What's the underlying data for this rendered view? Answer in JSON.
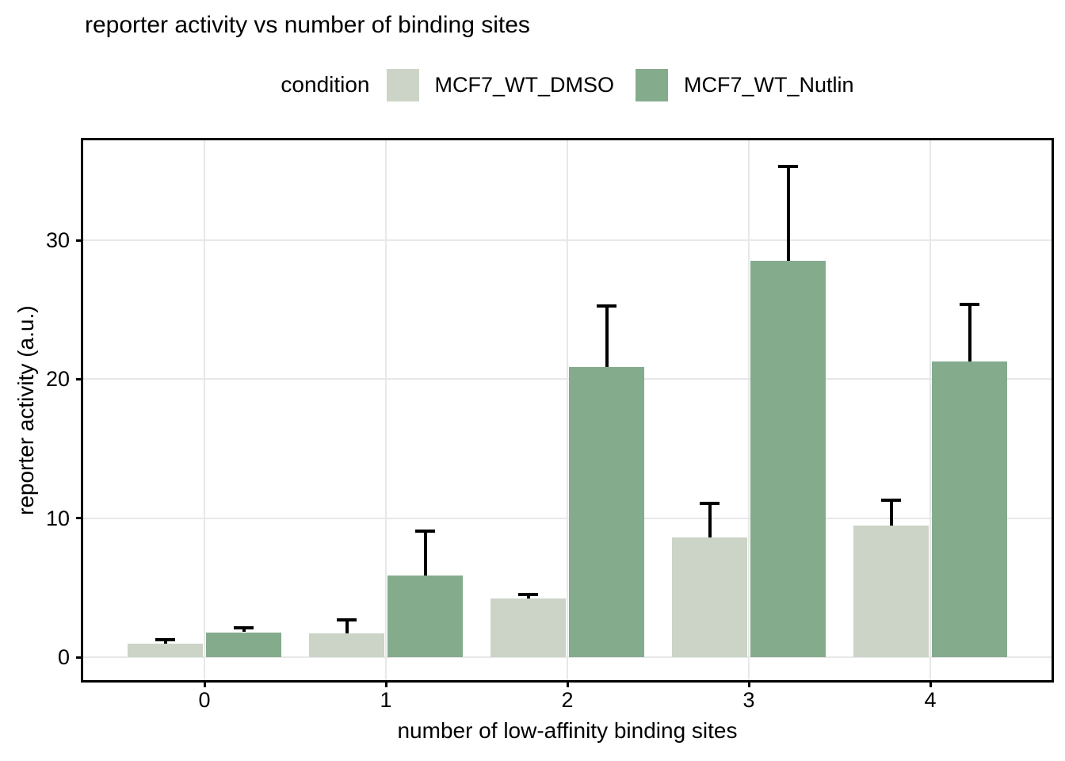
{
  "title": "reporter activity vs number of binding sites",
  "chart_data": {
    "type": "bar",
    "title": "reporter activity vs number of binding sites",
    "xlabel": "number of low-affinity binding sites",
    "ylabel": "reporter activity (a.u.)",
    "legend_title": "condition",
    "legend_position": "top-center",
    "grid": "major-only",
    "categories": [
      "0",
      "1",
      "2",
      "3",
      "4"
    ],
    "yticks": [
      0,
      10,
      20,
      30
    ],
    "ylim": [
      -1.65,
      37.19
    ],
    "bar_orientation": "vertical-grouped-dodged",
    "error_bars": "upper-only-with-cap",
    "series": [
      {
        "name": "MCF7_WT_DMSO",
        "color": "#cbd4c6",
        "values": [
          1.0,
          1.7,
          4.2,
          8.6,
          9.5
        ],
        "error_upper": [
          1.4,
          2.8,
          4.6,
          11.2,
          11.4
        ]
      },
      {
        "name": "MCF7_WT_Nutlin",
        "color": "#85ab8d",
        "values": [
          1.8,
          5.9,
          20.9,
          28.5,
          21.3
        ],
        "error_upper": [
          2.2,
          9.2,
          25.4,
          35.4,
          25.5
        ]
      }
    ]
  },
  "colors": {
    "background": "#ffffff",
    "gridline": "#e8e8ea",
    "axis_line": "#000000",
    "error_bar": "#000000",
    "text": "#000000"
  }
}
